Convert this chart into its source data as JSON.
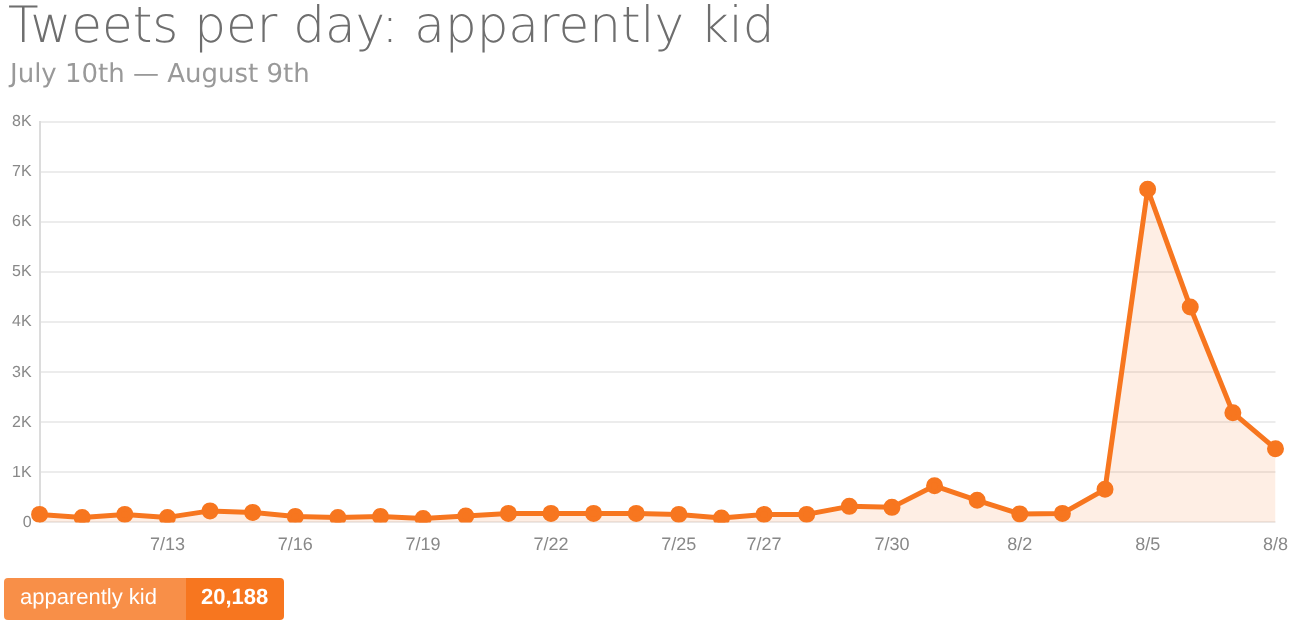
{
  "chart_data": {
    "type": "area",
    "title": "Tweets per day: apparently kid",
    "subtitle": "July 10th — August 9th",
    "categories": [
      null,
      null,
      null,
      "7/13",
      null,
      null,
      "7/16",
      null,
      null,
      "7/19",
      null,
      null,
      "7/22",
      null,
      null,
      "7/25",
      null,
      "7/27",
      null,
      null,
      "7/30",
      null,
      null,
      "8/2",
      null,
      null,
      "8/5",
      null,
      null,
      "8/8"
    ],
    "series": [
      {
        "name": "apparently kid",
        "color": "#f7761f",
        "values": [
          160,
          100,
          160,
          100,
          230,
          200,
          120,
          100,
          120,
          80,
          130,
          180,
          180,
          180,
          180,
          160,
          90,
          160,
          160,
          320,
          300,
          730,
          440,
          170,
          180,
          660,
          6650,
          4300,
          2190,
          1470
        ]
      }
    ],
    "ylim": [
      0,
      8000
    ],
    "yticks": [
      0,
      {
        "value": 1000,
        "label": "1K"
      },
      {
        "value": 2000,
        "label": "2K"
      },
      {
        "value": 3000,
        "label": "3K"
      },
      {
        "value": 4000,
        "label": "4K"
      },
      {
        "value": 5000,
        "label": "5K"
      },
      {
        "value": 6000,
        "label": "6K"
      },
      {
        "value": 7000,
        "label": "7K"
      },
      {
        "value": 8000,
        "label": "8K"
      }
    ],
    "grid": "y",
    "legend": "bottom left",
    "marker": "circle",
    "annotations": [
      "20,188"
    ]
  }
}
